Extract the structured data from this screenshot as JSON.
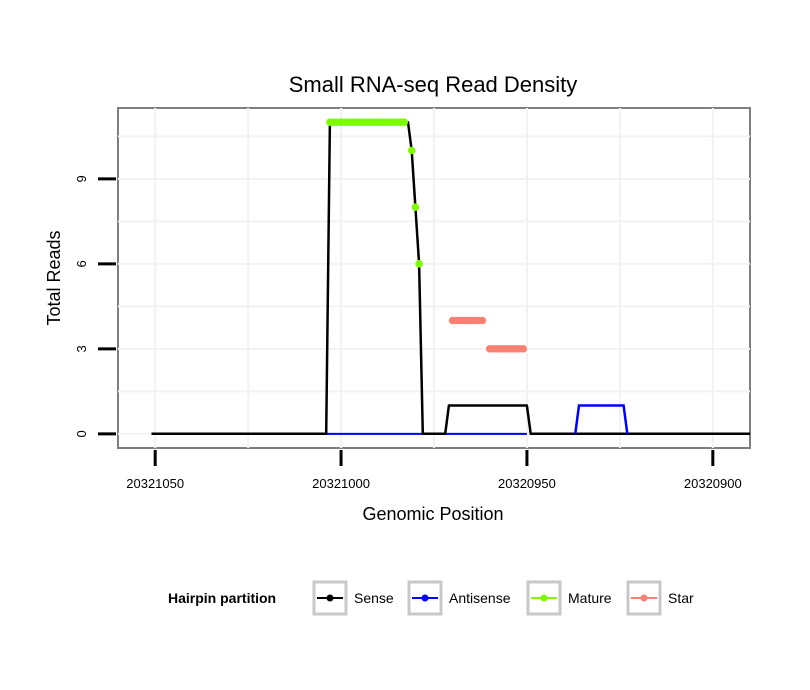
{
  "chart_data": {
    "type": "line",
    "title": "Small RNA-seq Read Density",
    "xlabel": "Genomic Position",
    "ylabel": "Total Reads",
    "x_reversed": true,
    "xlim": [
      20321060,
      20320890
    ],
    "ylim": [
      -0.5,
      11.5
    ],
    "xticks": [
      20321050,
      20321000,
      20320950,
      20320900
    ],
    "xtick_labels": [
      "20321050",
      "20321000",
      "20320950",
      "20320900"
    ],
    "yticks": [
      0,
      3,
      6,
      9
    ],
    "ytick_labels": [
      "0",
      "3",
      "6",
      "9"
    ],
    "grid": true,
    "legend": {
      "title": "Hairpin partition",
      "position": "bottom",
      "entries": [
        {
          "name": "Sense",
          "color": "#000000"
        },
        {
          "name": "Antisense",
          "color": "#0000ff"
        },
        {
          "name": "Mature",
          "color": "#7cfc00"
        },
        {
          "name": "Star",
          "color": "#fa8072"
        }
      ]
    },
    "series": [
      {
        "name": "Sense",
        "color": "#000000",
        "style": "line",
        "x": [
          20321051,
          20321004,
          20321003,
          20320982,
          20320981,
          20320980,
          20320979,
          20320978,
          20320977,
          20320976,
          20320975,
          20320974,
          20320973,
          20320972,
          20320971,
          20320970,
          20320969,
          20320968,
          20320967,
          20320966,
          20320965,
          20320964,
          20320963,
          20320962,
          20320961,
          20320960,
          20320959,
          20320958,
          20320957,
          20320956,
          20320955,
          20320954,
          20320953,
          20320952,
          20320951,
          20320950,
          20320949,
          20320948,
          20320947,
          20320946,
          20320945,
          20320944,
          20320943,
          20320942,
          20320941,
          20320940,
          20320939,
          20320938,
          20320937,
          20320936,
          20320935,
          20320934,
          20320933,
          20320932,
          20320931,
          20320930,
          20320929,
          20320928,
          20320927,
          20320926,
          20320925,
          20320924,
          20320923,
          20320922,
          20320921,
          20320920,
          20320919,
          20320918,
          20320917,
          20320916,
          20320915,
          20320914,
          20320913,
          20320912,
          20320911,
          20320910,
          20320909,
          20320908,
          20320907,
          20320906,
          20320905,
          20320904,
          20320903,
          20320902,
          20320901,
          20320900,
          20320899,
          20320898,
          20320897,
          20320896,
          20320895,
          20320894,
          20320893,
          20320892,
          20320891,
          20320890
        ],
        "y": [
          0,
          0,
          11,
          11,
          10,
          8,
          6,
          0,
          0,
          0,
          0,
          0,
          0,
          0,
          1,
          1,
          1,
          1,
          1,
          1,
          1,
          1,
          1,
          1,
          1,
          1,
          1,
          1,
          1,
          1,
          1,
          1,
          1,
          1,
          1,
          1,
          0,
          0,
          0,
          0,
          0,
          0,
          0,
          0,
          0,
          0,
          0,
          0,
          0,
          0,
          0,
          0,
          0,
          0,
          0,
          0,
          0,
          0,
          0,
          0,
          0,
          0,
          0,
          0,
          0,
          0,
          0,
          0,
          0,
          0,
          0,
          0,
          0,
          0,
          0,
          0,
          0,
          0,
          0,
          0,
          0,
          0,
          0,
          0,
          0,
          0,
          0,
          0,
          0,
          0,
          0,
          0,
          0,
          0,
          0,
          0
        ]
      }
    ]
  }
}
